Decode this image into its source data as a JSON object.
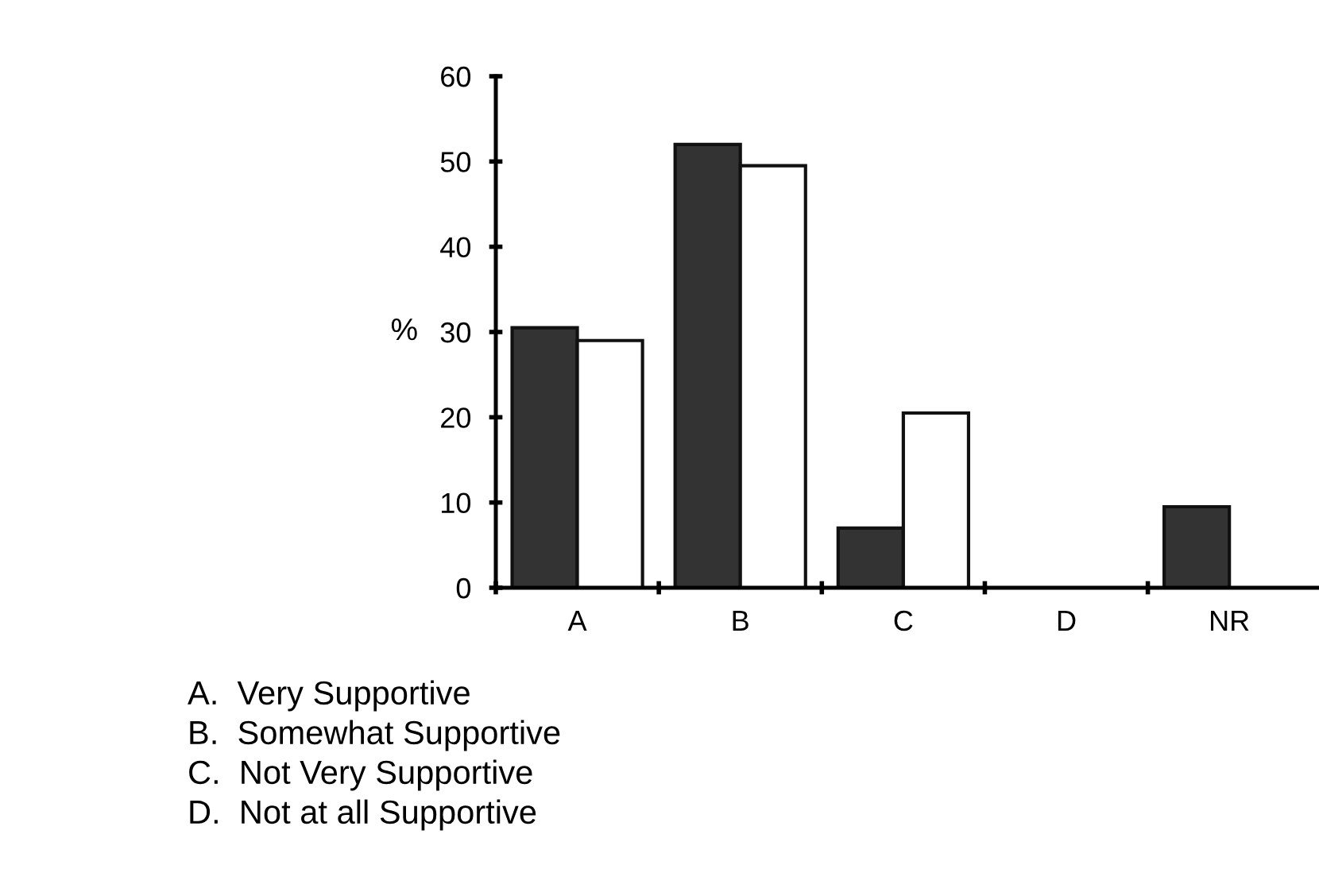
{
  "chart_data": {
    "type": "bar",
    "ylabel": "%",
    "categories": [
      "A",
      "B",
      "C",
      "D",
      "NR"
    ],
    "series": [
      {
        "color": "#333333",
        "values": [
          30.5,
          52,
          7,
          0,
          9.5
        ]
      },
      {
        "color": "#ffffff",
        "values": [
          29,
          49.5,
          20.5,
          0,
          null
        ]
      }
    ],
    "ylim": [
      0,
      60
    ],
    "yticks": [
      0,
      10,
      20,
      30,
      40,
      50,
      60
    ],
    "grid": false,
    "legend": false,
    "annotations": [
      "A.  Very Supportive",
      "B.  Somewhat Supportive",
      "C.  Not Very Supportive",
      "D.  Not at all Supportive"
    ]
  }
}
